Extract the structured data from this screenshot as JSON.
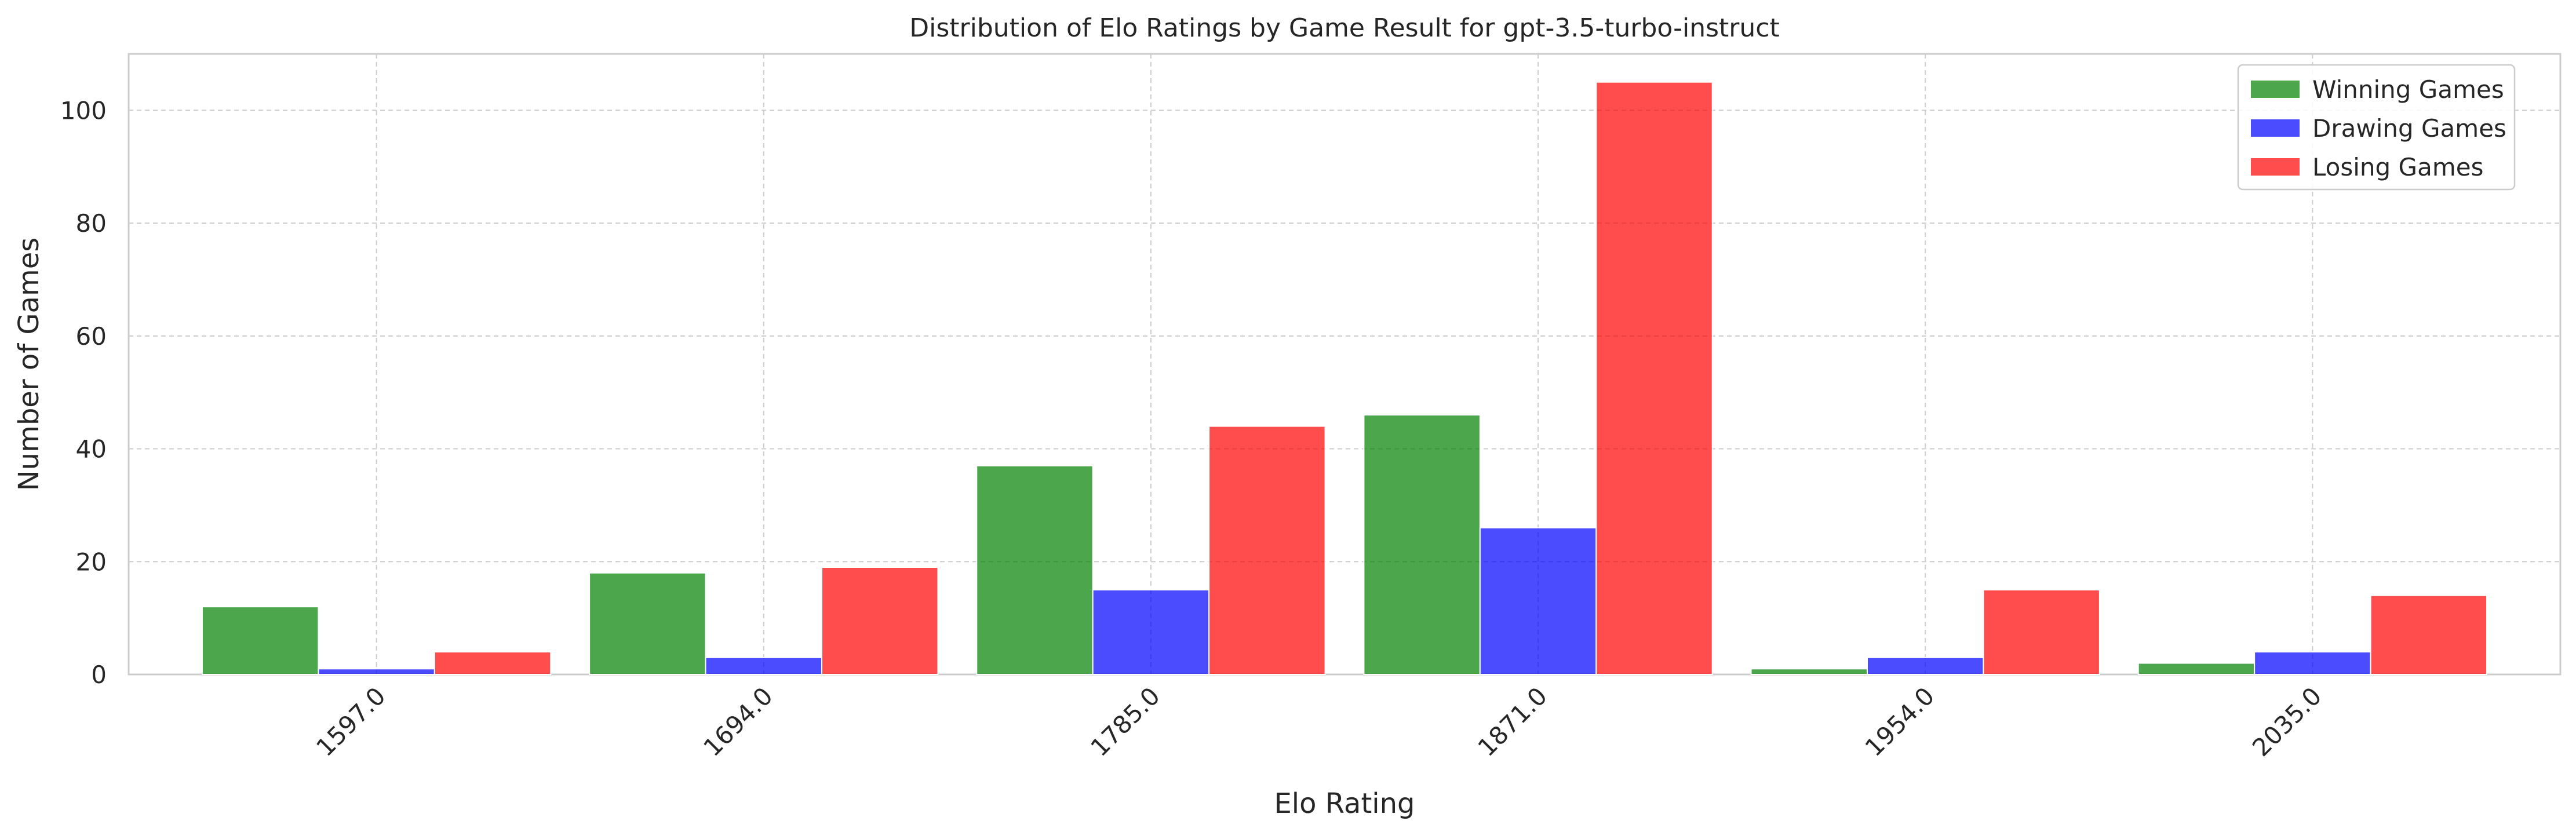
{
  "chart_data": {
    "type": "bar",
    "title": "Distribution of Elo Ratings by Game Result for gpt-3.5-turbo-instruct",
    "xlabel": "Elo Rating",
    "ylabel": "Number of Games",
    "categories": [
      "1597.0",
      "1694.0",
      "1785.0",
      "1871.0",
      "1954.0",
      "2035.0"
    ],
    "series": [
      {
        "name": "Winning Games",
        "color": "#008000",
        "values": [
          12,
          18,
          37,
          46,
          1,
          2
        ]
      },
      {
        "name": "Drawing Games",
        "color": "#0000ff",
        "values": [
          1,
          3,
          15,
          26,
          3,
          4
        ]
      },
      {
        "name": "Losing Games",
        "color": "#ff0000",
        "values": [
          4,
          19,
          44,
          105,
          15,
          14
        ]
      }
    ],
    "ylim": [
      0,
      110
    ],
    "yticks": [
      0,
      20,
      40,
      60,
      80,
      100
    ],
    "grid": true,
    "legend_position": "top-right",
    "bar_opacity": 0.7
  }
}
